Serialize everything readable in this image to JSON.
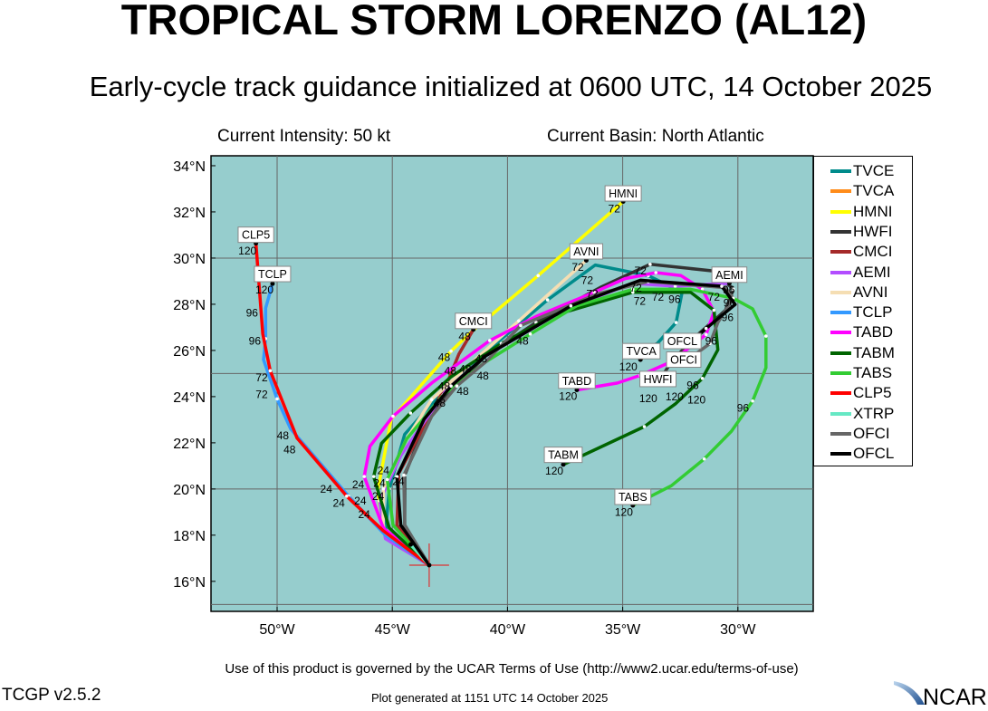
{
  "header": {
    "title": "TROPICAL STORM LORENZO (AL12)",
    "subtitle": "Early-cycle track guidance initialized at 0600 UTC, 14 October 2025",
    "intensity": "Current Intensity: 50 kt",
    "basin": "Current Basin: North Atlantic"
  },
  "footer": {
    "terms": "Use of this product is governed by the UCAR Terms of Use (http://www2.ucar.edu/terms-of-use)",
    "version": "TCGP v2.5.2",
    "generated": "Plot generated at 1151 UTC   14 October 2025",
    "logo": "NCAR"
  },
  "chart_data": {
    "type": "line",
    "map_background": "#96cdcd",
    "lon_range": [
      -52.87,
      -26.73
    ],
    "lat_range": [
      14.7,
      34.43
    ],
    "lat_ticks": [
      {
        "v": 34,
        "label": "34°N"
      },
      {
        "v": 32,
        "label": "32°N"
      },
      {
        "v": 30,
        "label": "30°N"
      },
      {
        "v": 28,
        "label": "28°N"
      },
      {
        "v": 26,
        "label": "26°N"
      },
      {
        "v": 24,
        "label": "24°N"
      },
      {
        "v": 22,
        "label": "22°N"
      },
      {
        "v": 20,
        "label": "20°N"
      },
      {
        "v": 18,
        "label": "18°N"
      },
      {
        "v": 16,
        "label": "16°N"
      }
    ],
    "lon_ticks": [
      {
        "v": -50,
        "label": "50°W"
      },
      {
        "v": -45,
        "label": "45°W"
      },
      {
        "v": -40,
        "label": "40°W"
      },
      {
        "v": -35,
        "label": "35°W"
      },
      {
        "v": -30,
        "label": "30°W"
      }
    ],
    "grid_lat": [
      15,
      20,
      25,
      30
    ],
    "grid_lon": [
      -50,
      -45,
      -40,
      -35,
      -30
    ],
    "initial_position": {
      "lon": -43.4,
      "lat": 16.7
    },
    "series": [
      {
        "name": "TVCE",
        "color": "#008b8b",
        "points": [
          [
            -43.4,
            16.7
          ],
          [
            -45.3,
            18.1
          ],
          [
            -45.13,
            20.01
          ],
          [
            -44.46,
            22.37
          ],
          [
            -42.95,
            24.07
          ],
          [
            -41.28,
            25.64
          ],
          [
            -38.26,
            28.19
          ],
          [
            -36.19,
            29.7
          ],
          [
            -33.89,
            29.24
          ],
          [
            -32.42,
            28.52
          ],
          [
            -32.68,
            27.21
          ],
          [
            -33.56,
            26.23
          ]
        ]
      },
      {
        "name": "TVCA",
        "color": "#ff8c1a",
        "points": [
          [
            -33.56,
            26.23
          ],
          [
            -34.23,
            25.6
          ]
        ]
      },
      {
        "name": "HMNI",
        "color": "#ffff00",
        "points": [
          [
            -43.4,
            16.7
          ],
          [
            -45.3,
            17.98
          ],
          [
            -45.64,
            19.88
          ],
          [
            -45.05,
            23.02
          ],
          [
            -42.45,
            25.97
          ],
          [
            -41.48,
            26.88
          ],
          [
            -38.67,
            29.24
          ],
          [
            -34.98,
            32.45
          ]
        ]
      },
      {
        "name": "HWFI",
        "color": "#333333",
        "points": [
          [
            -43.4,
            16.7
          ],
          [
            -44.46,
            18.44
          ],
          [
            -44.46,
            20.6
          ],
          [
            -43.46,
            23.09
          ],
          [
            -42.28,
            24.46
          ],
          [
            -40.94,
            25.77
          ],
          [
            -38.76,
            27.21
          ],
          [
            -35.99,
            28.72
          ],
          [
            -33.81,
            29.73
          ],
          [
            -31.04,
            29.44
          ],
          [
            -30.2,
            28.65
          ],
          [
            -30.54,
            27.74
          ],
          [
            -31.88,
            26.56
          ],
          [
            -32.89,
            25.51
          ],
          [
            -33.47,
            24.59
          ]
        ]
      },
      {
        "name": "CMCI",
        "color": "#a52a2a",
        "points": [
          [
            -43.4,
            16.7
          ],
          [
            -44.8,
            18.44
          ],
          [
            -44.72,
            20.67
          ],
          [
            -43.46,
            23.02
          ],
          [
            -42.62,
            24.59
          ],
          [
            -42.11,
            25.84
          ],
          [
            -41.48,
            26.91
          ]
        ]
      },
      {
        "name": "AEMI",
        "color": "#b34dff",
        "points": [
          [
            -43.4,
            16.7
          ],
          [
            -45.3,
            17.85
          ],
          [
            -45.55,
            19.49
          ],
          [
            -44.63,
            21.45
          ],
          [
            -42.62,
            24.33
          ],
          [
            -40.94,
            25.77
          ],
          [
            -37.33,
            27.87
          ],
          [
            -34.56,
            28.91
          ],
          [
            -32.72,
            28.78
          ],
          [
            -30.37,
            28.91
          ]
        ]
      },
      {
        "name": "AVNI",
        "color": "#f5deb3",
        "points": [
          [
            -43.4,
            16.7
          ],
          [
            -45.4,
            18.3
          ],
          [
            -45.39,
            20.01
          ],
          [
            -44.38,
            22.17
          ],
          [
            -43.29,
            23.87
          ],
          [
            -41.28,
            25.71
          ],
          [
            -39.51,
            27.28
          ],
          [
            -36.58,
            29.9
          ]
        ]
      },
      {
        "name": "TCLP",
        "color": "#3399ff",
        "points": [
          [
            -43.4,
            16.7
          ],
          [
            -45.3,
            18.0
          ],
          [
            -46.9,
            19.69
          ],
          [
            -49.41,
            22.6
          ],
          [
            -50.0,
            23.9
          ],
          [
            -50.59,
            25.6
          ],
          [
            -50.5,
            26.51
          ],
          [
            -50.5,
            27.83
          ],
          [
            -50.2,
            28.89
          ]
        ]
      },
      {
        "name": "TABD",
        "color": "#ff00ff",
        "points": [
          [
            -43.4,
            16.7
          ],
          [
            -45.39,
            18.31
          ],
          [
            -46.22,
            20.54
          ],
          [
            -45.97,
            21.85
          ],
          [
            -44.97,
            23.15
          ],
          [
            -43.29,
            24.59
          ],
          [
            -40.77,
            26.43
          ],
          [
            -38.76,
            27.47
          ],
          [
            -36.24,
            28.52
          ],
          [
            -34.9,
            29.11
          ],
          [
            -33.56,
            29.37
          ],
          [
            -32.47,
            29.24
          ],
          [
            -31.54,
            28.65
          ],
          [
            -31.04,
            27.67
          ],
          [
            -31.38,
            26.69
          ],
          [
            -32.89,
            25.51
          ],
          [
            -34.23,
            24.92
          ],
          [
            -35.23,
            24.59
          ],
          [
            -36.99,
            24.29
          ]
        ]
      },
      {
        "name": "TABM",
        "color": "#006400",
        "points": [
          [
            -43.4,
            16.7
          ],
          [
            -45.13,
            18.31
          ],
          [
            -45.81,
            20.54
          ],
          [
            -45.47,
            21.98
          ],
          [
            -44.21,
            23.29
          ],
          [
            -42.45,
            24.86
          ],
          [
            -40.27,
            26.3
          ],
          [
            -37.92,
            27.54
          ],
          [
            -34.56,
            28.52
          ],
          [
            -32.05,
            28.52
          ],
          [
            -31.04,
            27.74
          ],
          [
            -30.87,
            26.03
          ],
          [
            -31.54,
            24.79
          ],
          [
            -32.72,
            23.68
          ],
          [
            -34.06,
            22.7
          ],
          [
            -37.58,
            21.06
          ]
        ]
      },
      {
        "name": "TABS",
        "color": "#33cc33",
        "points": [
          [
            -43.4,
            16.7
          ],
          [
            -44.97,
            18.44
          ],
          [
            -45.22,
            20.41
          ],
          [
            -44.38,
            22.17
          ],
          [
            -42.79,
            24.07
          ],
          [
            -40.94,
            25.51
          ],
          [
            -39.01,
            26.71
          ],
          [
            -37.0,
            27.93
          ],
          [
            -34.56,
            28.65
          ],
          [
            -32.05,
            28.65
          ],
          [
            -30.2,
            28.26
          ],
          [
            -29.36,
            27.8
          ],
          [
            -28.78,
            26.62
          ],
          [
            -28.78,
            25.25
          ],
          [
            -29.36,
            23.81
          ],
          [
            -30.28,
            22.5
          ],
          [
            -31.46,
            21.3
          ],
          [
            -32.89,
            20.14
          ],
          [
            -34.56,
            19.29
          ]
        ]
      },
      {
        "name": "CLP5",
        "color": "#ff0000",
        "points": [
          [
            -43.4,
            16.7
          ],
          [
            -45.4,
            18.2
          ],
          [
            -46.98,
            19.69
          ],
          [
            -49.13,
            22.2
          ],
          [
            -50.3,
            25.12
          ],
          [
            -50.62,
            26.71
          ],
          [
            -50.92,
            30.64
          ]
        ]
      },
      {
        "name": "XTRP",
        "color": "#66e8c4",
        "points": [
          [
            -43.4,
            16.7
          ],
          [
            -44.2,
            17.6
          ]
        ]
      },
      {
        "name": "OFCI",
        "color": "#666666",
        "points": [
          [
            -43.4,
            16.7
          ],
          [
            -44.46,
            18.44
          ],
          [
            -44.5,
            20.6
          ],
          [
            -43.29,
            23.15
          ],
          [
            -42.2,
            24.46
          ],
          [
            -40.94,
            25.51
          ],
          [
            -39.43,
            27.08
          ],
          [
            -36.07,
            28.46
          ],
          [
            -33.89,
            28.98
          ],
          [
            -30.54,
            28.72
          ],
          [
            -30.2,
            28.26
          ],
          [
            -30.87,
            27.21
          ],
          [
            -31.21,
            26.3
          ],
          [
            -32.38,
            25.45
          ]
        ]
      },
      {
        "name": "OFCL",
        "color": "#000000",
        "points": [
          [
            -43.4,
            16.7
          ],
          [
            -44.63,
            18.44
          ],
          [
            -44.8,
            20.54
          ],
          [
            -43.62,
            23.02
          ],
          [
            -42.45,
            24.46
          ],
          [
            -40.94,
            25.77
          ],
          [
            -37.25,
            27.93
          ],
          [
            -34.23,
            29.04
          ],
          [
            -30.7,
            28.78
          ],
          [
            -30.12,
            27.99
          ],
          [
            -31.38,
            26.95
          ],
          [
            -31.96,
            26.43
          ]
        ]
      }
    ],
    "model_labels": [
      {
        "text": "CLP5",
        "lon": -50.92,
        "lat": 31.01
      },
      {
        "text": "TCLP",
        "lon": -50.2,
        "lat": 29.31
      },
      {
        "text": "HMNI",
        "lon": -34.98,
        "lat": 32.8
      },
      {
        "text": "AVNI",
        "lon": -36.58,
        "lat": 30.29
      },
      {
        "text": "CMCI",
        "lon": -41.48,
        "lat": 27.28
      },
      {
        "text": "TVCA",
        "lon": -34.19,
        "lat": 25.97
      },
      {
        "text": "OFCL",
        "lon": -32.55,
        "lat": 26.27
      },
      {
        "text": "OFCI",
        "lon": -32.35,
        "lat": 25.8
      },
      {
        "text": "HWFI",
        "lon": -33.47,
        "lat": 24.96
      },
      {
        "text": "TABD",
        "lon": -36.99,
        "lat": 24.69
      },
      {
        "text": "AEMI",
        "lon": -30.37,
        "lat": 29.28
      },
      {
        "text": "TABM",
        "lon": -37.58,
        "lat": 21.48
      },
      {
        "text": "TABS",
        "lon": -34.56,
        "lat": 19.66
      }
    ],
    "hour_labels": [
      {
        "t": "120",
        "lon": -51.29,
        "lat": 30.33
      },
      {
        "t": "120",
        "lon": -50.55,
        "lat": 28.63
      },
      {
        "t": "96",
        "lon": -51.09,
        "lat": 27.63
      },
      {
        "t": "96",
        "lon": -50.97,
        "lat": 26.43
      },
      {
        "t": "72",
        "lon": -50.67,
        "lat": 24.83
      },
      {
        "t": "72",
        "lon": -50.67,
        "lat": 24.11
      },
      {
        "t": "48",
        "lon": -49.75,
        "lat": 22.33
      },
      {
        "t": "48",
        "lon": -49.46,
        "lat": 21.91
      },
      {
        "t": "24",
        "lon": -47.87,
        "lat": 20.01
      },
      {
        "t": "24",
        "lon": -47.32,
        "lat": 19.4
      },
      {
        "t": "24",
        "lon": -45.39,
        "lat": 20.82
      },
      {
        "t": "24",
        "lon": -46.48,
        "lat": 20.21
      },
      {
        "t": "24",
        "lon": -46.39,
        "lat": 19.88
      },
      {
        "t": "24",
        "lon": -46.22,
        "lat": 19.49
      },
      {
        "t": "24",
        "lon": -45.89,
        "lat": 19.42
      },
      {
        "t": "24",
        "lon": -45.13,
        "lat": 20.34
      },
      {
        "t": "24",
        "lon": -44.97,
        "lat": 20.27
      },
      {
        "t": "48",
        "lon": -41.86,
        "lat": 26.62
      },
      {
        "t": "48",
        "lon": -42.75,
        "lat": 25.71
      },
      {
        "t": "48",
        "lon": -42.48,
        "lat": 25.51
      },
      {
        "t": "48",
        "lon": -42.03,
        "lat": 25.21
      },
      {
        "t": "48",
        "lon": -41.28,
        "lat": 25.51
      },
      {
        "t": "48",
        "lon": -41.07,
        "lat": 25.3
      },
      {
        "t": "48",
        "lon": -42.75,
        "lat": 24.65
      },
      {
        "t": "48",
        "lon": -42.95,
        "lat": 24.33
      },
      {
        "t": "48",
        "lon": -42.53,
        "lat": 24.24
      },
      {
        "t": "48",
        "lon": -39.35,
        "lat": 26.43
      },
      {
        "t": "72",
        "lon": -35.37,
        "lat": 32.15
      },
      {
        "t": "72",
        "lon": -36.95,
        "lat": 29.62
      },
      {
        "t": "72",
        "lon": -36.54,
        "lat": 29.44
      },
      {
        "t": "72",
        "lon": -34.23,
        "lat": 29.46
      },
      {
        "t": "72",
        "lon": -34.43,
        "lat": 29.11
      },
      {
        "t": "72",
        "lon": -34.26,
        "lat": 28.74
      },
      {
        "t": "72",
        "lon": -36.32,
        "lat": 28.46
      },
      {
        "t": "72",
        "lon": -33.47,
        "lat": 28.32
      },
      {
        "t": "72",
        "lon": -31.04,
        "lat": 28.32
      },
      {
        "t": "96",
        "lon": -32.75,
        "lat": 28.22
      },
      {
        "t": "96",
        "lon": -30.79,
        "lat": 28.63
      },
      {
        "t": "96",
        "lon": -30.37,
        "lat": 28.26
      },
      {
        "t": "96",
        "lon": -30.45,
        "lat": 27.63
      },
      {
        "t": "96",
        "lon": -31.75,
        "lat": 26.43
      },
      {
        "t": "96",
        "lon": -31.96,
        "lat": 24.49
      },
      {
        "t": "96",
        "lon": -29.78,
        "lat": 23.51
      },
      {
        "t": "120",
        "lon": -34.56,
        "lat": 25.31
      },
      {
        "t": "120",
        "lon": -32.75,
        "lat": 25.58
      },
      {
        "t": "120",
        "lon": -32.72,
        "lat": 25.14
      },
      {
        "t": "120",
        "lon": -33.89,
        "lat": 24.33
      },
      {
        "t": "120",
        "lon": -37.37,
        "lat": 24.03
      },
      {
        "t": "120",
        "lon": -37.97,
        "lat": 20.8
      },
      {
        "t": "120",
        "lon": -34.95,
        "lat": 19.0
      }
    ]
  }
}
